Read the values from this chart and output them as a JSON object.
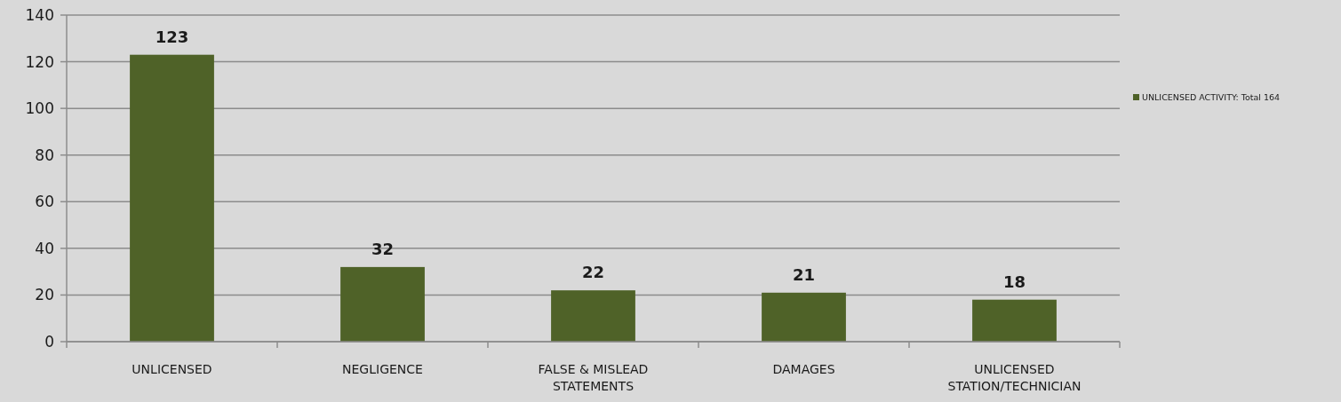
{
  "chart_data": {
    "type": "bar",
    "categories": [
      "UNLICENSED",
      "NEGLIGENCE",
      "FALSE & MISLEAD STATEMENTS",
      "DAMAGES",
      "UNLICENSED STATION/TECHNICIAN"
    ],
    "series": [
      {
        "name": "UNLICENSED ACTIVITY: Total 164",
        "color": "#4f6228",
        "values": [
          123,
          32,
          22,
          21,
          18
        ]
      }
    ],
    "ylim": [
      0,
      140
    ],
    "yticks": [
      0,
      20,
      40,
      60,
      80,
      100,
      120,
      140
    ],
    "grid": "y",
    "legend": "right",
    "data_labels": true
  }
}
